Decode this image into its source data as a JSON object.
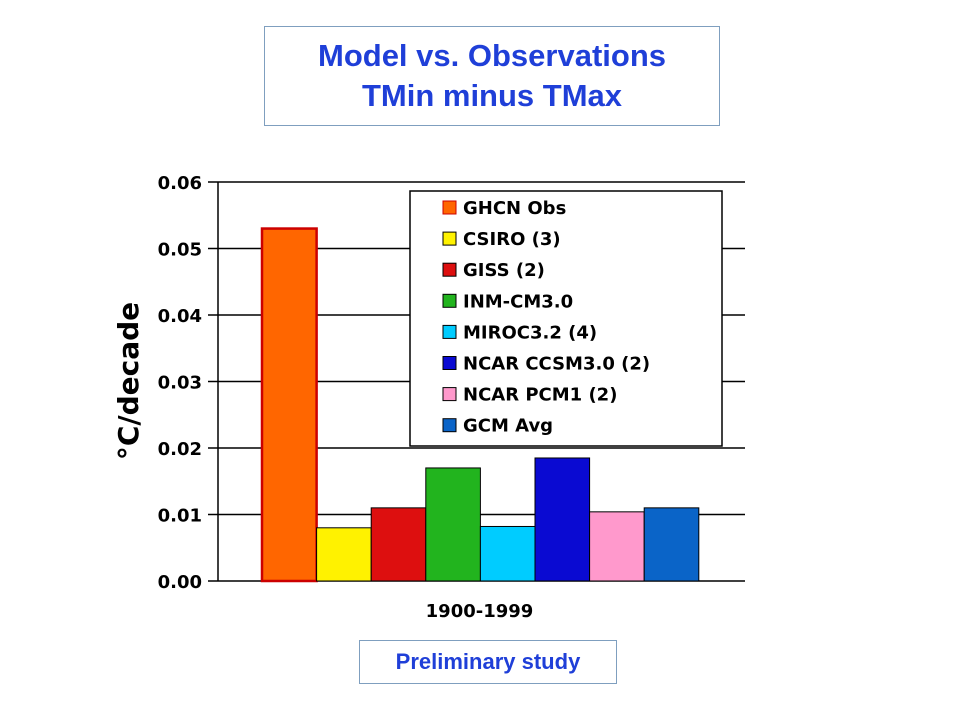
{
  "title": {
    "line1": "Model vs. Observations",
    "line2": "TMin minus TMax"
  },
  "note": "Preliminary study",
  "chart_data": {
    "type": "bar",
    "ylabel": "°C/decade",
    "xlabel": "1900-1999",
    "ylim": [
      0,
      0.06
    ],
    "yticks": [
      "0.00",
      "0.01",
      "0.02",
      "0.03",
      "0.04",
      "0.05",
      "0.06"
    ],
    "grid": true,
    "legend_position": "top-right",
    "series": [
      {
        "name": "GHCN Obs",
        "value": 0.053,
        "color": "#ff6600"
      },
      {
        "name": "CSIRO (3)",
        "value": 0.008,
        "color": "#fff200"
      },
      {
        "name": "GISS (2)",
        "value": 0.011,
        "color": "#dd0f0f"
      },
      {
        "name": "INM-CM3.0",
        "value": 0.017,
        "color": "#22b41e"
      },
      {
        "name": "MIROC3.2 (4)",
        "value": 0.0082,
        "color": "#00ccff"
      },
      {
        "name": "NCAR CCSM3.0 (2)",
        "value": 0.0185,
        "color": "#0a0ad2"
      },
      {
        "name": "NCAR PCM1 (2)",
        "value": 0.0104,
        "color": "#ff99cc"
      },
      {
        "name": "GCM Avg",
        "value": 0.011,
        "color": "#0a64c8"
      }
    ]
  }
}
